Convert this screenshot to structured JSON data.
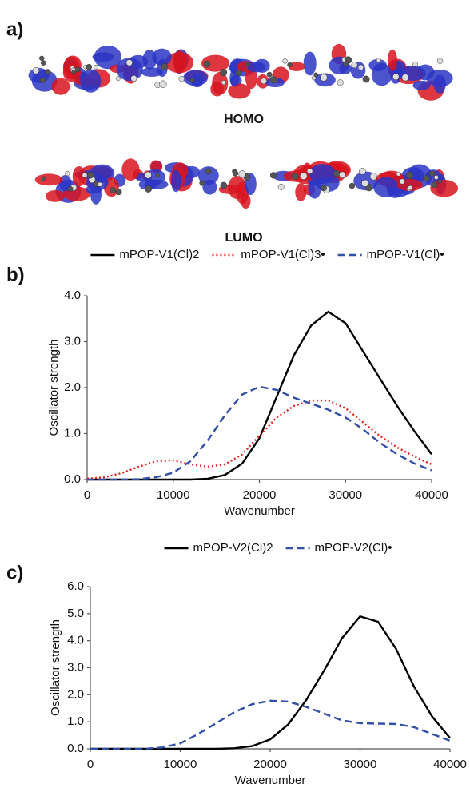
{
  "figure": {
    "panel_labels": [
      "a)",
      "b)",
      "c)"
    ],
    "orbital_labels": [
      "HOMO",
      "LUMO"
    ]
  },
  "chart_data": [
    {
      "type": "line",
      "x_label": "Wavenumber",
      "y_label": "Oscillator strength",
      "x": [
        0,
        2000,
        4000,
        6000,
        8000,
        10000,
        12000,
        14000,
        16000,
        18000,
        20000,
        22000,
        24000,
        26000,
        28000,
        30000,
        32000,
        34000,
        36000,
        38000,
        40000
      ],
      "xlim": [
        0,
        40000
      ],
      "xticks": [
        0,
        10000,
        20000,
        30000,
        40000
      ],
      "ylim": [
        0,
        4
      ],
      "yticks": [
        {
          "value": 0,
          "label": "0.0"
        },
        {
          "value": 1,
          "label": "1.0"
        },
        {
          "value": 2,
          "label": "2.0"
        },
        {
          "value": 3,
          "label": "3.0"
        },
        {
          "value": 4,
          "label": "4.0"
        }
      ],
      "grid": false,
      "legend": "top",
      "series": [
        {
          "name": "mPOP-V1(Cl)2",
          "color": "#000000",
          "dash": "solid",
          "values": [
            0,
            0,
            0,
            0,
            0,
            0,
            0,
            0.02,
            0.1,
            0.35,
            0.9,
            1.8,
            2.7,
            3.35,
            3.65,
            3.4,
            2.8,
            2.2,
            1.6,
            1.05,
            0.55
          ]
        },
        {
          "name": "mPOP-V1(Cl)3•",
          "color": "#e8231f",
          "dash": "dotted",
          "values": [
            0.02,
            0.05,
            0.14,
            0.28,
            0.4,
            0.42,
            0.33,
            0.28,
            0.33,
            0.55,
            0.95,
            1.35,
            1.6,
            1.72,
            1.72,
            1.55,
            1.25,
            0.95,
            0.7,
            0.5,
            0.33
          ]
        },
        {
          "name": "mPOP-V1(Cl)•",
          "color": "#2f4fa8",
          "dash": "dashed",
          "values": [
            0,
            0,
            0,
            0.01,
            0.05,
            0.15,
            0.4,
            0.85,
            1.4,
            1.85,
            2.02,
            1.95,
            1.78,
            1.65,
            1.52,
            1.35,
            1.1,
            0.8,
            0.55,
            0.35,
            0.2
          ]
        }
      ]
    },
    {
      "type": "line",
      "x_label": "Wavenumber",
      "y_label": "Oscillator strength",
      "x": [
        0,
        2000,
        4000,
        6000,
        8000,
        10000,
        12000,
        14000,
        16000,
        18000,
        20000,
        22000,
        24000,
        26000,
        28000,
        30000,
        32000,
        34000,
        36000,
        38000,
        40000
      ],
      "xlim": [
        0,
        40000
      ],
      "xticks": [
        0,
        10000,
        20000,
        30000,
        40000
      ],
      "ylim": [
        0,
        6
      ],
      "yticks": [
        {
          "value": 0,
          "label": "0.0"
        },
        {
          "value": 1,
          "label": "1.0"
        },
        {
          "value": 2,
          "label": "2.0"
        },
        {
          "value": 3,
          "label": "3.0"
        },
        {
          "value": 4,
          "label": "4.0"
        },
        {
          "value": 5,
          "label": "5.0"
        },
        {
          "value": 6,
          "label": "6.0"
        }
      ],
      "grid": false,
      "legend": "top",
      "series": [
        {
          "name": "mPOP-V2(Cl)2",
          "color": "#000000",
          "dash": "solid",
          "values": [
            0,
            0,
            0,
            0,
            0,
            0,
            0,
            0,
            0.02,
            0.1,
            0.35,
            0.9,
            1.8,
            2.9,
            4.1,
            4.9,
            4.7,
            3.7,
            2.3,
            1.2,
            0.4
          ]
        },
        {
          "name": "mPOP-V2(Cl)•",
          "color": "#2f4fa8",
          "dash": "dashed",
          "values": [
            0,
            0,
            0,
            0,
            0.05,
            0.2,
            0.55,
            0.95,
            1.35,
            1.65,
            1.78,
            1.75,
            1.55,
            1.3,
            1.05,
            0.95,
            0.93,
            0.92,
            0.8,
            0.55,
            0.3
          ]
        }
      ]
    }
  ]
}
